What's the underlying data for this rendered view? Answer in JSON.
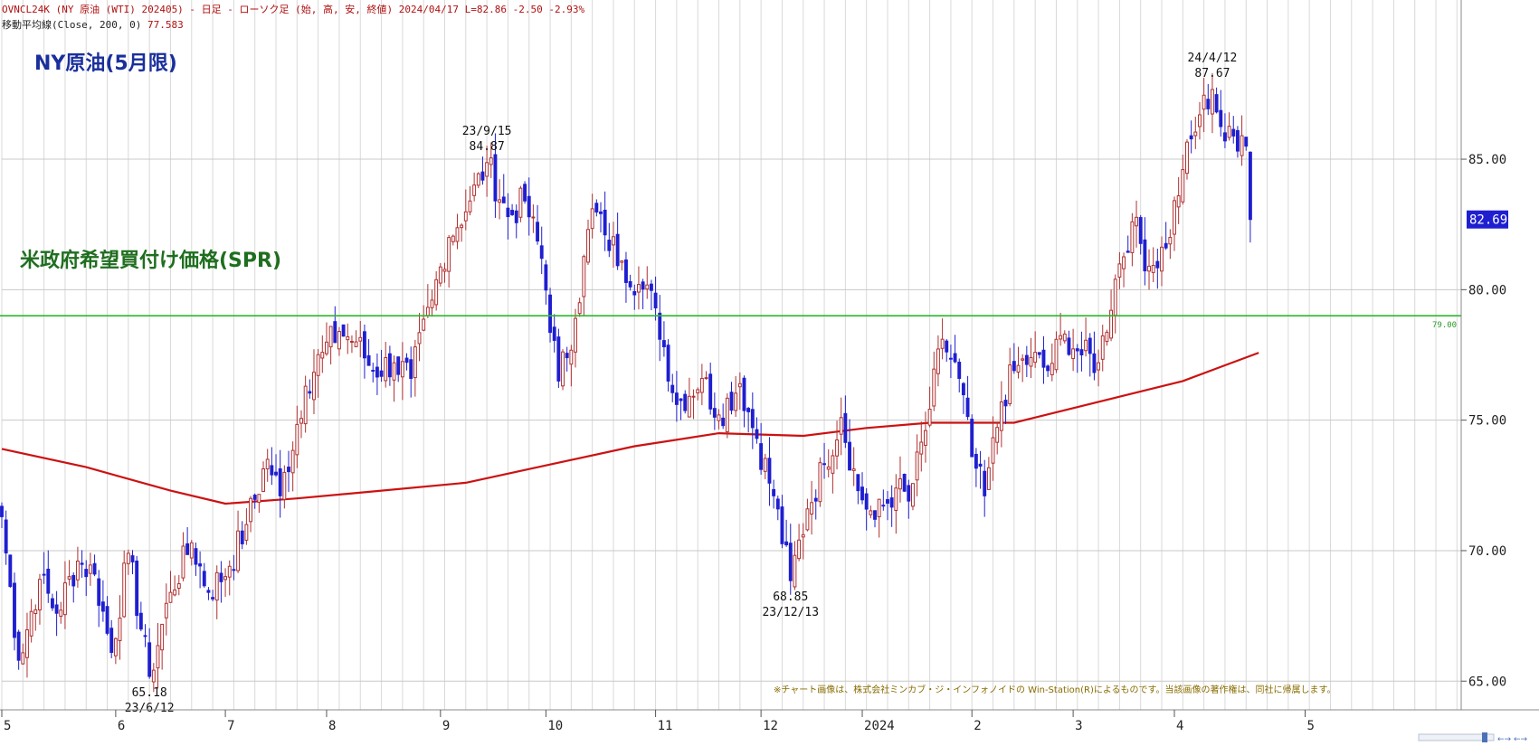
{
  "header": {
    "line1": "OVNCL24K (NY 原油 (WTI) 202405) - 日足 - ローソク足 (始, 高, 安, 終値)  2024/04/17 L=82.86 -2.50 -2.93%",
    "line2_label": "移動平均線(Close, 200, 0)",
    "line2_value": "77.583"
  },
  "titles": {
    "main": "NY原油(5月限)",
    "spr": "米政府希望買付け価格(SPR)"
  },
  "footer_note": "※チャート画像は、株式会社ミンカブ・ジ・インフォノイドの Win-Station(R)によるものです。当該画像の著作権は、同社に帰属します。",
  "colors": {
    "up_candle": "#b03030",
    "down_candle": "#1f1fd0",
    "ma_line": "#cc1111",
    "spr_line": "#2db82d",
    "grid": "#d9d9d9",
    "header_text": "#b01010",
    "title_blue": "#1a2f9c",
    "title_green": "#1f6e1f",
    "note_text": "#8a6d00",
    "price_badge": "#1f1fd0"
  },
  "chart_data": {
    "type": "candlestick",
    "title": "NY原油(5月限)",
    "ylim": [
      63.9,
      91.1
    ],
    "yticks": [
      65.0,
      70.0,
      75.0,
      80.0,
      85.0
    ],
    "ytick_labels": [
      "65.00",
      "70.00",
      "75.00",
      "80.00",
      "85.00"
    ],
    "x_range": [
      0,
      346
    ],
    "xticks": [
      {
        "label": "5",
        "x": 0
      },
      {
        "label": "6",
        "x": 27
      },
      {
        "label": "7",
        "x": 53
      },
      {
        "label": "8",
        "x": 77
      },
      {
        "label": "9",
        "x": 104
      },
      {
        "label": "10",
        "x": 129
      },
      {
        "label": "11",
        "x": 155
      },
      {
        "label": "12",
        "x": 180
      },
      {
        "label": "2024",
        "x": 204
      },
      {
        "label": "2",
        "x": 230
      },
      {
        "label": "3",
        "x": 254
      },
      {
        "label": "4",
        "x": 278
      },
      {
        "label": "5",
        "x": 309
      }
    ],
    "anchors": [
      [
        0,
        71.3
      ],
      [
        4,
        65.8
      ],
      [
        9,
        68.9
      ],
      [
        13,
        67.6
      ],
      [
        18,
        69.6
      ],
      [
        22,
        69.1
      ],
      [
        26,
        66.1
      ],
      [
        30,
        69.9
      ],
      [
        35,
        65.18
      ],
      [
        40,
        68.4
      ],
      [
        45,
        70.3
      ],
      [
        49,
        68.4
      ],
      [
        54,
        69.4
      ],
      [
        58,
        71.0
      ],
      [
        63,
        73.5
      ],
      [
        66,
        72.1
      ],
      [
        72,
        76.3
      ],
      [
        76,
        77.6
      ],
      [
        80,
        78.4
      ],
      [
        84,
        78.0
      ],
      [
        88,
        76.9
      ],
      [
        93,
        77.2
      ],
      [
        97,
        76.6
      ],
      [
        102,
        79.6
      ],
      [
        106,
        82.0
      ],
      [
        111,
        83.4
      ],
      [
        115,
        84.87
      ],
      [
        120,
        82.8
      ],
      [
        124,
        83.4
      ],
      [
        128,
        81.2
      ],
      [
        132,
        76.5
      ],
      [
        136,
        78.9
      ],
      [
        140,
        83.1
      ],
      [
        143,
        82.1
      ],
      [
        147,
        81.1
      ],
      [
        151,
        80.2
      ],
      [
        155,
        79.3
      ],
      [
        160,
        75.6
      ],
      [
        166,
        76.6
      ],
      [
        170,
        75.2
      ],
      [
        175,
        76.4
      ],
      [
        179,
        74.3
      ],
      [
        183,
        72.1
      ],
      [
        187,
        68.85
      ],
      [
        191,
        71.6
      ],
      [
        195,
        73.3
      ],
      [
        199,
        75.1
      ],
      [
        203,
        72.3
      ],
      [
        207,
        71.2
      ],
      [
        212,
        72.4
      ],
      [
        215,
        71.9
      ],
      [
        219,
        74.6
      ],
      [
        223,
        78.1
      ],
      [
        227,
        76.6
      ],
      [
        230,
        73.6
      ],
      [
        233,
        72.1
      ],
      [
        237,
        75.7
      ],
      [
        240,
        76.9
      ],
      [
        244,
        77.4
      ],
      [
        248,
        76.9
      ],
      [
        252,
        78.3
      ],
      [
        256,
        77.5
      ],
      [
        260,
        77.2
      ],
      [
        264,
        80.4
      ],
      [
        268,
        82.6
      ],
      [
        272,
        80.9
      ],
      [
        276,
        81.6
      ],
      [
        280,
        84.6
      ],
      [
        284,
        86.7
      ],
      [
        287,
        87.67
      ],
      [
        290,
        85.7
      ],
      [
        294,
        85.9
      ],
      [
        295,
        85.5
      ],
      [
        296,
        82.69
      ]
    ],
    "series": [
      {
        "name": "移動平均線(Close, 200, 0)",
        "points": [
          [
            0,
            73.9
          ],
          [
            20,
            73.2
          ],
          [
            40,
            72.3
          ],
          [
            53,
            71.8
          ],
          [
            70,
            72.0
          ],
          [
            90,
            72.3
          ],
          [
            110,
            72.6
          ],
          [
            130,
            73.3
          ],
          [
            150,
            74.0
          ],
          [
            170,
            74.5
          ],
          [
            190,
            74.4
          ],
          [
            205,
            74.7
          ],
          [
            220,
            74.9
          ],
          [
            240,
            74.9
          ],
          [
            255,
            75.5
          ],
          [
            265,
            75.9
          ],
          [
            280,
            76.5
          ],
          [
            290,
            77.1
          ],
          [
            298,
            77.583
          ]
        ]
      }
    ],
    "hlines": [
      {
        "label": "米政府希望買付け価格(SPR)",
        "value": 79.0,
        "value_label": "79.00"
      }
    ],
    "annotations": [
      {
        "x": 35,
        "y": 65.18,
        "lines": [
          "65.18",
          "23/6/12"
        ],
        "pos": "below"
      },
      {
        "x": 115,
        "y": 84.87,
        "lines": [
          "23/9/15",
          "84.87"
        ],
        "pos": "above"
      },
      {
        "x": 187,
        "y": 68.85,
        "lines": [
          "68.85",
          "23/12/13"
        ],
        "pos": "below"
      },
      {
        "x": 287,
        "y": 87.67,
        "lines": [
          "24/4/12",
          "87.67"
        ],
        "pos": "above"
      }
    ],
    "last_price": {
      "value": 82.69,
      "label": "82.69"
    }
  }
}
